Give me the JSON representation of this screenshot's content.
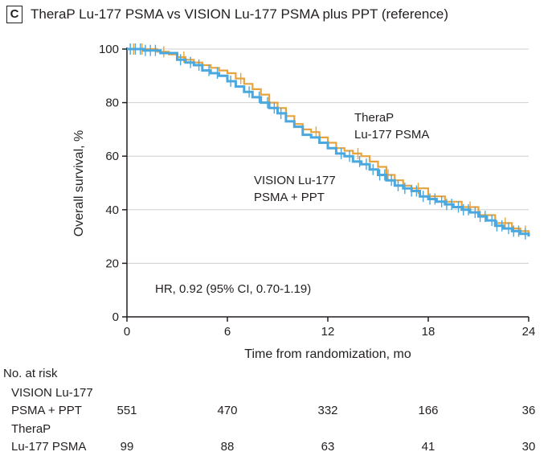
{
  "panel": {
    "letter": "C",
    "title": "TheraP Lu-177 PSMA vs VISION Lu-177 PSMA plus PPT (reference)"
  },
  "chart_data": {
    "type": "line",
    "subtype": "kaplan-meier",
    "xlabel": "Time from randomization, mo",
    "ylabel": "Overall survival, %",
    "xlim": [
      0,
      24
    ],
    "ylim": [
      0,
      100
    ],
    "xticks": [
      0,
      6,
      12,
      18,
      24
    ],
    "yticks": [
      0,
      20,
      40,
      60,
      80,
      100
    ],
    "grid": "horizontal",
    "colors": {
      "therap": "#e8a33d",
      "vision": "#4aa8de"
    },
    "series": [
      {
        "name": "TheraP Lu-177 PSMA",
        "color": "#e8a33d",
        "steps": [
          [
            0,
            100
          ],
          [
            1.2,
            100
          ],
          [
            1.8,
            99
          ],
          [
            2.5,
            98
          ],
          [
            3.0,
            97
          ],
          [
            3.5,
            96
          ],
          [
            4.0,
            95
          ],
          [
            4.5,
            94
          ],
          [
            5.0,
            93
          ],
          [
            5.5,
            92
          ],
          [
            6.0,
            91
          ],
          [
            6.5,
            89
          ],
          [
            7.0,
            87
          ],
          [
            7.5,
            85
          ],
          [
            8.0,
            83
          ],
          [
            8.5,
            80
          ],
          [
            9.0,
            78
          ],
          [
            9.5,
            75
          ],
          [
            10.0,
            72
          ],
          [
            10.5,
            70
          ],
          [
            11.0,
            69
          ],
          [
            11.5,
            67
          ],
          [
            12.0,
            65
          ],
          [
            12.5,
            63
          ],
          [
            13.0,
            62
          ],
          [
            13.5,
            61
          ],
          [
            14.0,
            60
          ],
          [
            14.5,
            58
          ],
          [
            15.0,
            56
          ],
          [
            15.5,
            53
          ],
          [
            16.0,
            51
          ],
          [
            16.5,
            49
          ],
          [
            17.0,
            48
          ],
          [
            18.0,
            45
          ],
          [
            19.0,
            43
          ],
          [
            20.0,
            41
          ],
          [
            21.0,
            38
          ],
          [
            22.0,
            35
          ],
          [
            23.0,
            33
          ],
          [
            23.5,
            32
          ],
          [
            24.0,
            31
          ]
        ],
        "censor_x": [
          0.4,
          0.9,
          2.2,
          3.4,
          6.8,
          9.5,
          11.3,
          13.8,
          15.6,
          17.4,
          20.5,
          22.6,
          23.8
        ]
      },
      {
        "name": "VISION Lu-177 PSMA + PPT",
        "color": "#4aa8de",
        "steps": [
          [
            0,
            100
          ],
          [
            1.0,
            99.5
          ],
          [
            2.0,
            98.5
          ],
          [
            3.0,
            96
          ],
          [
            3.5,
            95
          ],
          [
            4.0,
            94
          ],
          [
            4.5,
            92
          ],
          [
            5.0,
            91
          ],
          [
            5.5,
            90
          ],
          [
            6.0,
            88
          ],
          [
            6.5,
            86
          ],
          [
            7.0,
            84
          ],
          [
            7.5,
            82
          ],
          [
            8.0,
            80
          ],
          [
            8.5,
            78
          ],
          [
            9.0,
            76
          ],
          [
            9.5,
            73
          ],
          [
            10.0,
            71
          ],
          [
            10.5,
            68
          ],
          [
            11.0,
            67
          ],
          [
            11.5,
            65
          ],
          [
            12.0,
            63
          ],
          [
            12.5,
            61
          ],
          [
            13.0,
            60
          ],
          [
            13.5,
            58
          ],
          [
            14.0,
            57
          ],
          [
            14.5,
            55
          ],
          [
            15.0,
            53
          ],
          [
            15.5,
            51
          ],
          [
            16.0,
            49
          ],
          [
            16.5,
            48
          ],
          [
            17.0,
            47
          ],
          [
            17.5,
            45
          ],
          [
            18.0,
            44
          ],
          [
            18.5,
            43
          ],
          [
            19.0,
            42
          ],
          [
            19.5,
            41
          ],
          [
            20.0,
            40
          ],
          [
            20.5,
            39
          ],
          [
            21.0,
            37.5
          ],
          [
            21.5,
            36
          ],
          [
            22.0,
            34
          ],
          [
            22.5,
            33
          ],
          [
            23.0,
            32
          ],
          [
            23.5,
            31
          ],
          [
            24.0,
            30
          ]
        ],
        "censor_x": [
          0.2,
          0.5,
          0.8,
          1.1,
          1.4,
          1.7,
          3.2,
          3.8,
          4.3,
          4.9,
          5.4,
          6.2,
          7.3,
          7.9,
          8.4,
          8.8,
          9.2,
          12.8,
          13.3,
          13.9,
          14.3,
          14.7,
          15.1,
          15.4,
          15.8,
          16.2,
          16.6,
          17.0,
          17.3,
          17.7,
          18.1,
          18.4,
          18.8,
          19.1,
          19.4,
          19.8,
          20.1,
          20.4,
          20.8,
          21.1,
          21.4,
          21.8,
          22.1,
          22.4,
          22.8,
          23.1,
          23.4,
          23.8
        ]
      }
    ],
    "annotations": {
      "therap_label": [
        "TheraP",
        "Lu-177 PSMA"
      ],
      "vision_label": [
        "VISION Lu-177",
        "PSMA + PPT"
      ],
      "hr_text": "HR, 0.92 (95% CI, 0.70-1.19)"
    }
  },
  "risk_table": {
    "header": "No. at risk",
    "vision_label": [
      "VISION Lu-177",
      "PSMA + PPT"
    ],
    "therap_label": [
      "TheraP",
      "Lu-177 PSMA"
    ],
    "vision_counts": [
      "551",
      "470",
      "332",
      "166",
      "36"
    ],
    "therap_counts": [
      "99",
      "88",
      "63",
      "41",
      "30"
    ]
  }
}
